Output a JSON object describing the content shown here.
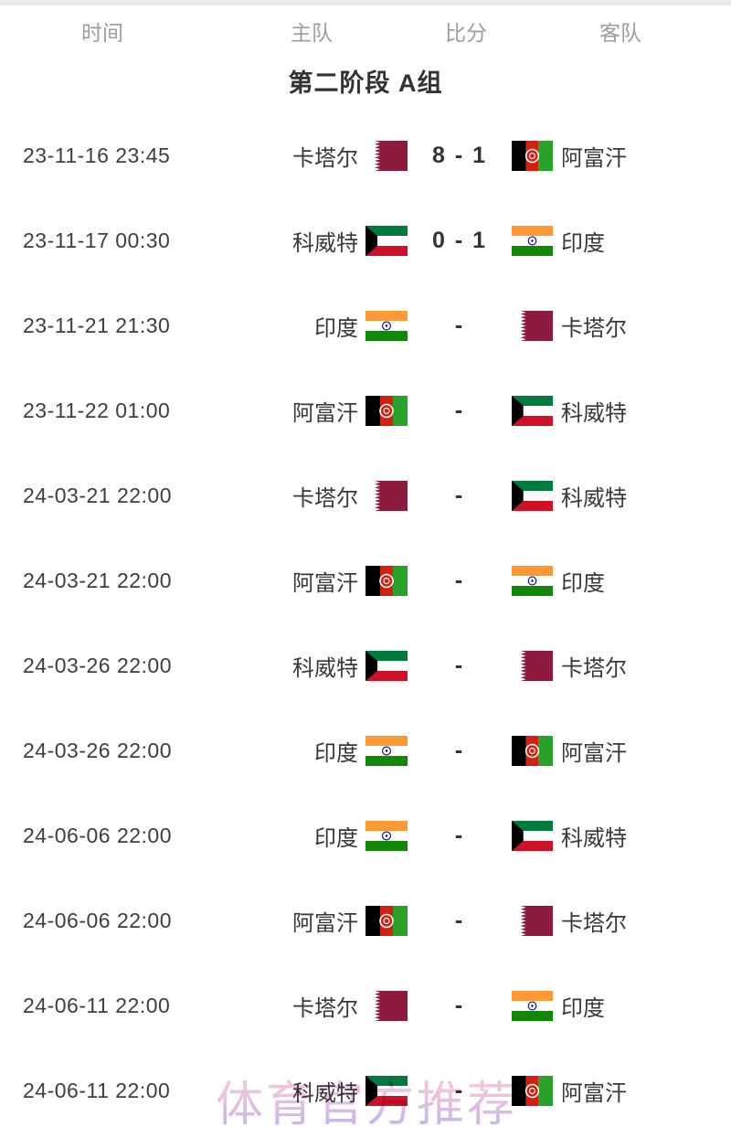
{
  "header": {
    "columns": [
      "时间",
      "主队",
      "比分",
      "客队"
    ]
  },
  "section_title": "第二阶段 A组",
  "watermark": "体育官方推荐",
  "colors": {
    "header_text": "#9c9ca1",
    "body_text": "#383838",
    "title_text": "#333333",
    "top_border": "#e9e9e9",
    "watermark_top": "#f6b4cf",
    "watermark_bottom": "#ab97e6"
  },
  "flags": {
    "qatar": {
      "label": "qatar-flag",
      "maroon": "#8d1b3d",
      "white": "#ffffff"
    },
    "kuwait": {
      "label": "kuwait-flag",
      "green": "#007a3d",
      "white": "#ffffff",
      "red": "#ce1126",
      "black": "#000000"
    },
    "afghanistan": {
      "label": "afghanistan-flag",
      "black": "#000000",
      "red": "#d32011",
      "green": "#28a228",
      "white": "#ffffff"
    },
    "india": {
      "label": "india-flag",
      "saffron": "#ff9933",
      "white": "#ffffff",
      "green": "#138808",
      "navy": "#000080"
    }
  },
  "matches": [
    {
      "time": "23-11-16 23:45",
      "home": "卡塔尔",
      "home_flag": "qatar",
      "score": "8 - 1",
      "away_flag": "afghanistan",
      "away": "阿富汗"
    },
    {
      "time": "23-11-17 00:30",
      "home": "科威特",
      "home_flag": "kuwait",
      "score": "0 - 1",
      "away_flag": "india",
      "away": "印度"
    },
    {
      "time": "23-11-21 21:30",
      "home": "印度",
      "home_flag": "india",
      "score": "-",
      "away_flag": "qatar",
      "away": "卡塔尔"
    },
    {
      "time": "23-11-22 01:00",
      "home": "阿富汗",
      "home_flag": "afghanistan",
      "score": "-",
      "away_flag": "kuwait",
      "away": "科威特"
    },
    {
      "time": "24-03-21 22:00",
      "home": "卡塔尔",
      "home_flag": "qatar",
      "score": "-",
      "away_flag": "kuwait",
      "away": "科威特"
    },
    {
      "time": "24-03-21 22:00",
      "home": "阿富汗",
      "home_flag": "afghanistan",
      "score": "-",
      "away_flag": "india",
      "away": "印度"
    },
    {
      "time": "24-03-26 22:00",
      "home": "科威特",
      "home_flag": "kuwait",
      "score": "-",
      "away_flag": "qatar",
      "away": "卡塔尔"
    },
    {
      "time": "24-03-26 22:00",
      "home": "印度",
      "home_flag": "india",
      "score": "-",
      "away_flag": "afghanistan",
      "away": "阿富汗"
    },
    {
      "time": "24-06-06 22:00",
      "home": "印度",
      "home_flag": "india",
      "score": "-",
      "away_flag": "kuwait",
      "away": "科威特"
    },
    {
      "time": "24-06-06 22:00",
      "home": "阿富汗",
      "home_flag": "afghanistan",
      "score": "-",
      "away_flag": "qatar",
      "away": "卡塔尔"
    },
    {
      "time": "24-06-11 22:00",
      "home": "卡塔尔",
      "home_flag": "qatar",
      "score": "-",
      "away_flag": "india",
      "away": "印度"
    },
    {
      "time": "24-06-11 22:00",
      "home": "科威特",
      "home_flag": "kuwait",
      "score": "-",
      "away_flag": "afghanistan",
      "away": "阿富汗"
    }
  ]
}
